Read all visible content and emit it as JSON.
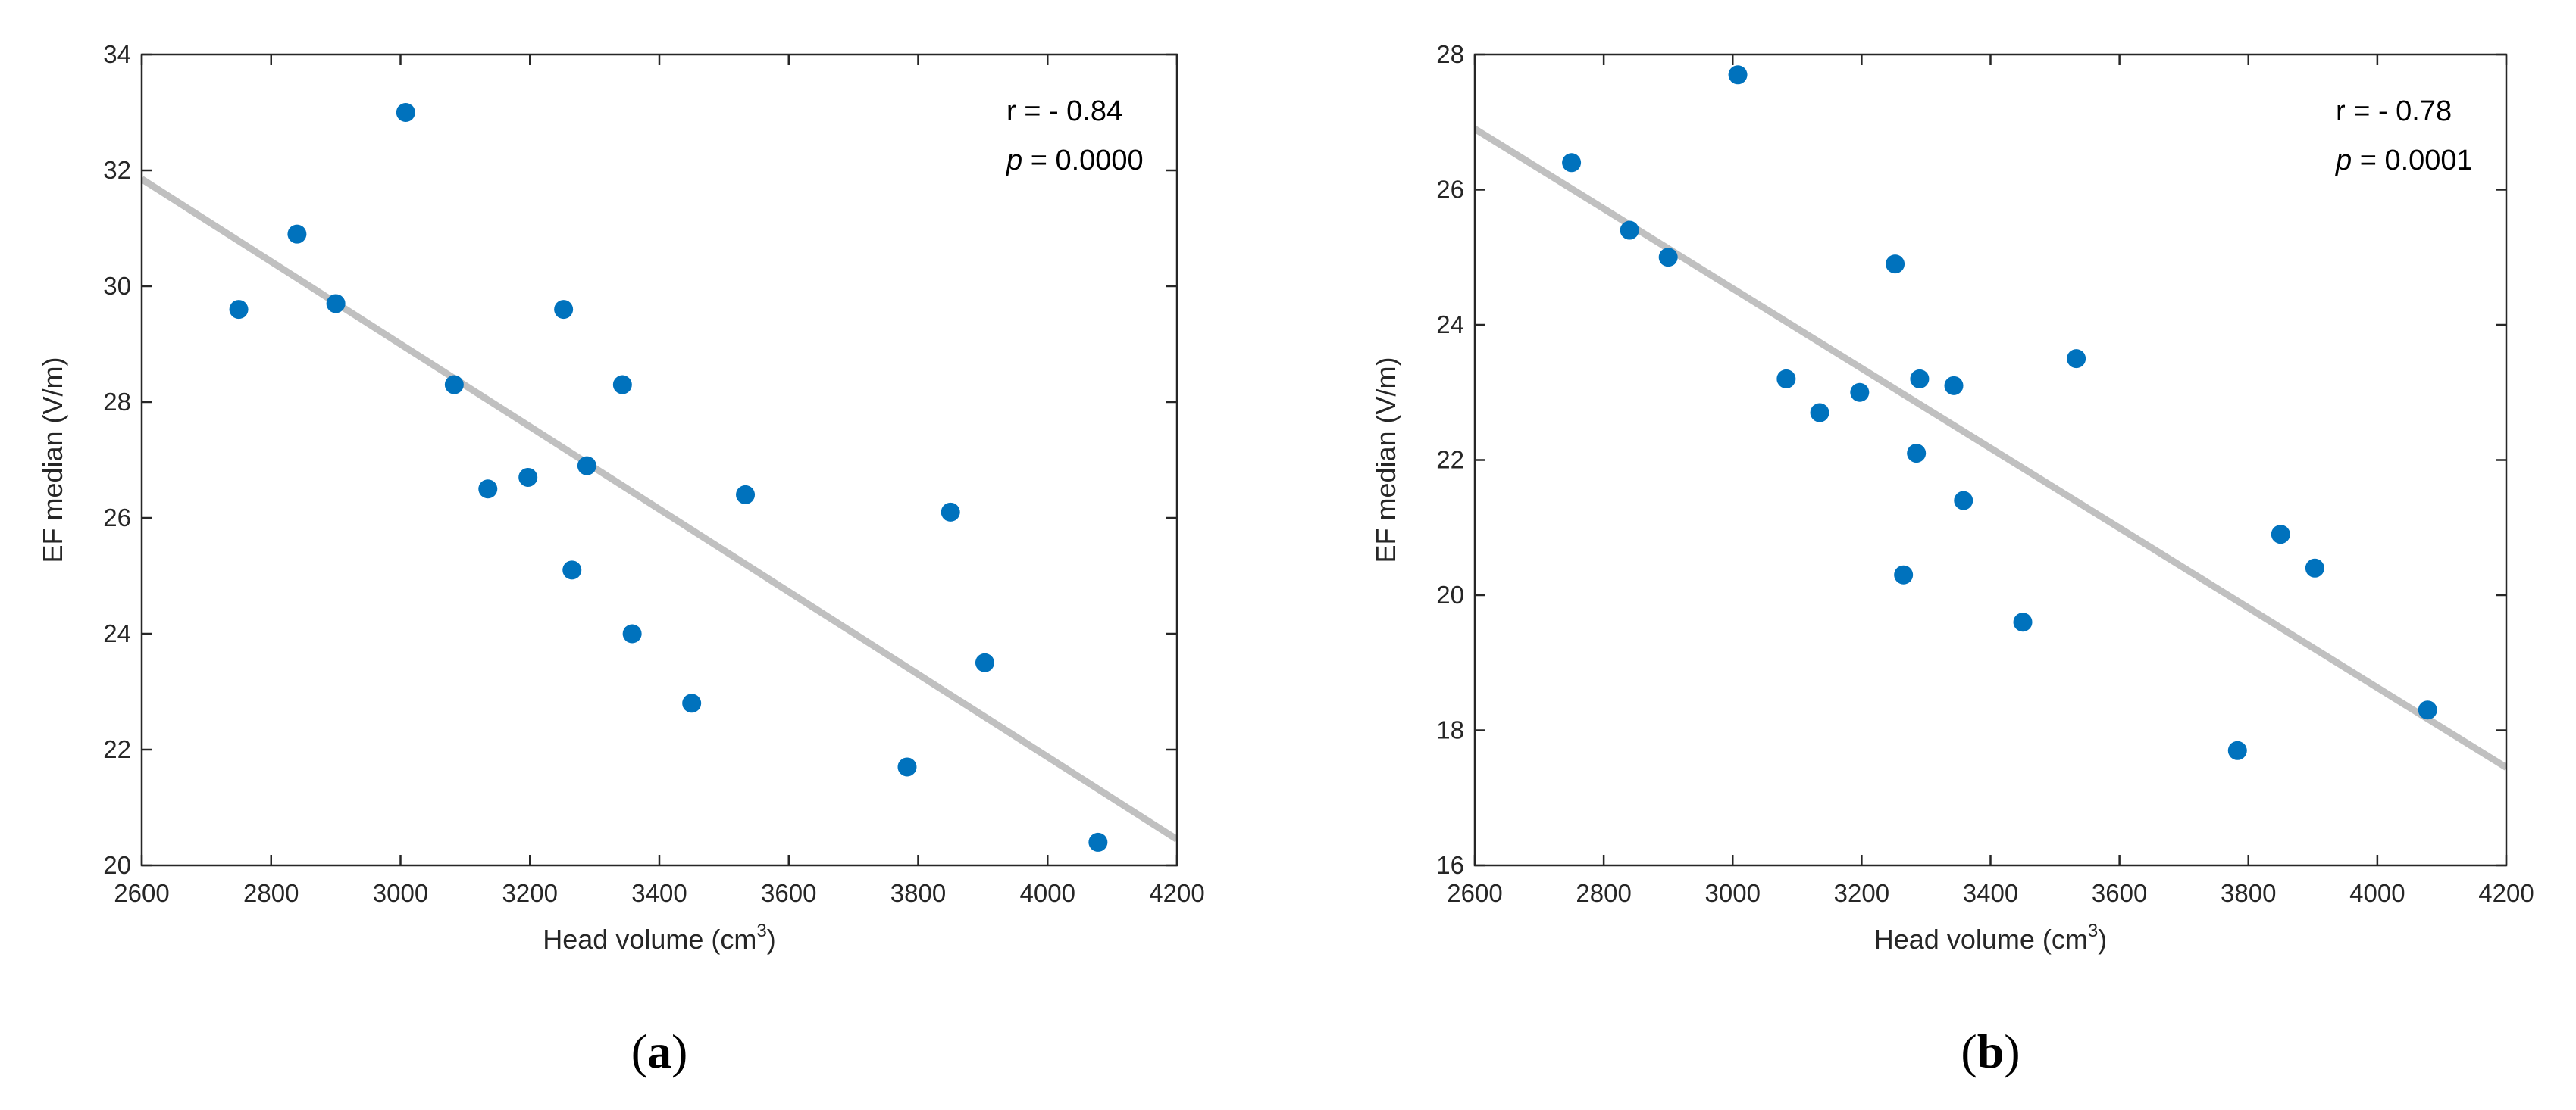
{
  "chart_data": [
    {
      "type": "scatter",
      "panel_label": "(a)",
      "panel_letter": "a",
      "xlabel": "Head volume",
      "xlabel_unit": "cm",
      "xlabel_unit_exp": "3",
      "ylabel": "EF median (V/m)",
      "xlim": [
        2600,
        4200
      ],
      "ylim": [
        20,
        34
      ],
      "xticks": [
        2600,
        2800,
        3000,
        3200,
        3400,
        3600,
        3800,
        4000,
        4200
      ],
      "yticks": [
        20,
        22,
        24,
        26,
        28,
        30,
        32,
        34
      ],
      "grid": false,
      "stat_r": "r = - 0.84",
      "stat_p_symbol": "p",
      "stat_p_value": " = 0.0000",
      "fit_line": {
        "x": [
          2600,
          4200
        ],
        "y": [
          31.85,
          20.45
        ]
      },
      "points": [
        {
          "x": 2750,
          "y": 29.6
        },
        {
          "x": 2840,
          "y": 30.9
        },
        {
          "x": 2900,
          "y": 29.7
        },
        {
          "x": 3008,
          "y": 33.0
        },
        {
          "x": 3083,
          "y": 28.3
        },
        {
          "x": 3135,
          "y": 26.5
        },
        {
          "x": 3197,
          "y": 26.7
        },
        {
          "x": 3252,
          "y": 29.6
        },
        {
          "x": 3265,
          "y": 25.1
        },
        {
          "x": 3288,
          "y": 26.9
        },
        {
          "x": 3343,
          "y": 28.3
        },
        {
          "x": 3358,
          "y": 24.0
        },
        {
          "x": 3450,
          "y": 22.8
        },
        {
          "x": 3533,
          "y": 26.4
        },
        {
          "x": 3783,
          "y": 21.7
        },
        {
          "x": 3850,
          "y": 26.1
        },
        {
          "x": 3903,
          "y": 23.5
        },
        {
          "x": 4078,
          "y": 20.4
        }
      ]
    },
    {
      "type": "scatter",
      "panel_label": "(b)",
      "panel_letter": "b",
      "xlabel": "Head volume",
      "xlabel_unit": "cm",
      "xlabel_unit_exp": "3",
      "ylabel": "EF median (V/m)",
      "xlim": [
        2600,
        4200
      ],
      "ylim": [
        16,
        28
      ],
      "xticks": [
        2600,
        2800,
        3000,
        3200,
        3400,
        3600,
        3800,
        4000,
        4200
      ],
      "yticks": [
        16,
        18,
        20,
        22,
        24,
        26,
        28
      ],
      "grid": false,
      "stat_r": "r = - 0.78",
      "stat_p_symbol": "p",
      "stat_p_value": " = 0.0001",
      "fit_line": {
        "x": [
          2600,
          4200
        ],
        "y": [
          26.9,
          17.45
        ]
      },
      "points": [
        {
          "x": 2750,
          "y": 26.4
        },
        {
          "x": 2840,
          "y": 25.4
        },
        {
          "x": 2900,
          "y": 25.0
        },
        {
          "x": 3008,
          "y": 27.7
        },
        {
          "x": 3083,
          "y": 23.2
        },
        {
          "x": 3135,
          "y": 22.7
        },
        {
          "x": 3197,
          "y": 23.0
        },
        {
          "x": 3252,
          "y": 24.9
        },
        {
          "x": 3265,
          "y": 20.3
        },
        {
          "x": 3285,
          "y": 22.1
        },
        {
          "x": 3290,
          "y": 23.2
        },
        {
          "x": 3343,
          "y": 23.1
        },
        {
          "x": 3358,
          "y": 21.4
        },
        {
          "x": 3450,
          "y": 19.6
        },
        {
          "x": 3533,
          "y": 23.5
        },
        {
          "x": 3783,
          "y": 17.7
        },
        {
          "x": 3850,
          "y": 20.9
        },
        {
          "x": 3903,
          "y": 20.4
        },
        {
          "x": 4078,
          "y": 18.3
        }
      ]
    }
  ],
  "colors": {
    "marker": "#0072BD",
    "fit_line": "#C0C0C0",
    "axes": "#262626"
  }
}
